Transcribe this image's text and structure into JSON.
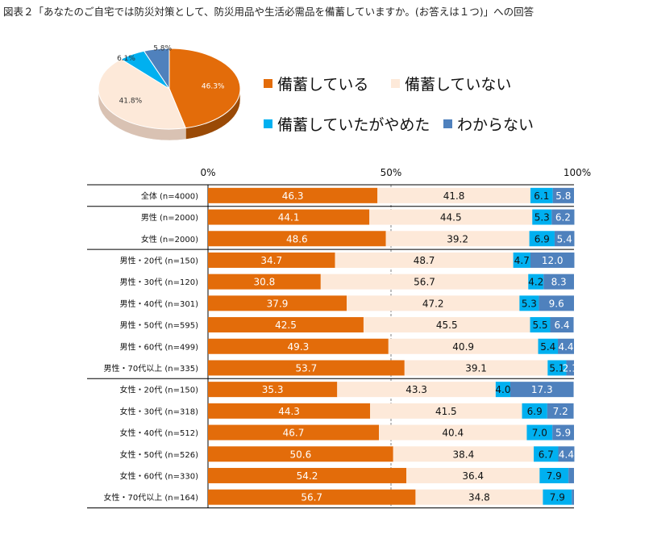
{
  "title": "図表２「あなたのご自宅では防災対策として、防災用品や生活必需品を備蓄していますか。(お答えは１つ)」への回答",
  "colors": {
    "stockpiling": "#E36C0A",
    "not_stockpiling": "#FDE9D9",
    "stopped": "#00B0F0",
    "unknown": "#4F81BD"
  },
  "legend": [
    "備蓄している",
    "備蓄していない",
    "備蓄していたがやめた",
    "わからない"
  ],
  "chart_data": [
    {
      "type": "pie",
      "title": "",
      "labels": [
        "備蓄している",
        "備蓄していない",
        "備蓄していたがやめた",
        "わからない"
      ],
      "values": [
        46.3,
        41.8,
        6.1,
        5.8
      ],
      "value_labels": [
        "46.3%",
        "41.8%",
        "6.1%",
        "5.8%"
      ]
    },
    {
      "type": "bar",
      "orientation": "horizontal",
      "stacked": true,
      "xlim": [
        0,
        100
      ],
      "ticks": [
        "0%",
        "50%",
        "100%"
      ],
      "categories": [
        "全体 (n=4000)",
        "男性 (n=2000)",
        "女性 (n=2000)",
        "男性・20代 (n=150)",
        "男性・30代 (n=120)",
        "男性・40代 (n=301)",
        "男性・50代 (n=595)",
        "男性・60代 (n=499)",
        "男性・70代以上 (n=335)",
        "女性・20代 (n=150)",
        "女性・30代 (n=318)",
        "女性・40代 (n=512)",
        "女性・50代 (n=526)",
        "女性・60代 (n=330)",
        "女性・70代以上 (n=164)"
      ],
      "series": [
        {
          "name": "備蓄している",
          "values": [
            46.3,
            44.1,
            48.6,
            34.7,
            30.8,
            37.9,
            42.5,
            49.3,
            53.7,
            35.3,
            44.3,
            46.7,
            50.6,
            54.2,
            56.7
          ]
        },
        {
          "name": "備蓄していない",
          "values": [
            41.8,
            44.5,
            39.2,
            48.7,
            56.7,
            47.2,
            45.5,
            40.9,
            39.1,
            43.3,
            41.5,
            40.4,
            38.4,
            36.4,
            34.8
          ]
        },
        {
          "name": "備蓄していたがやめた",
          "values": [
            6.1,
            5.3,
            6.9,
            4.7,
            4.2,
            5.3,
            5.5,
            5.4,
            5.1,
            4.0,
            6.9,
            7.0,
            6.7,
            7.9,
            7.9
          ]
        },
        {
          "name": "わからない",
          "values": [
            5.8,
            6.2,
            5.4,
            12.0,
            8.3,
            9.6,
            6.4,
            4.4,
            2.1,
            17.3,
            7.2,
            5.9,
            4.4,
            1.5,
            0.6
          ]
        }
      ],
      "data_labels": [
        [
          "46.3",
          "41.8",
          "6.1",
          "5.8"
        ],
        [
          "44.1",
          "44.5",
          "5.3",
          "6.2"
        ],
        [
          "48.6",
          "39.2",
          "6.9",
          "5.4"
        ],
        [
          "34.7",
          "48.7",
          "4.7",
          "12.0"
        ],
        [
          "30.8",
          "56.7",
          "4.2",
          "8.3"
        ],
        [
          "37.9",
          "47.2",
          "5.3",
          "9.6"
        ],
        [
          "42.5",
          "45.5",
          "5.5",
          "6.4"
        ],
        [
          "49.3",
          "40.9",
          "5.4",
          "4.4"
        ],
        [
          "53.7",
          "39.1",
          "5.1",
          "2.1"
        ],
        [
          "35.3",
          "43.3",
          "4.0",
          "17.3"
        ],
        [
          "44.3",
          "41.5",
          "6.9",
          "7.2"
        ],
        [
          "46.7",
          "40.4",
          "7.0",
          "5.9"
        ],
        [
          "50.6",
          "38.4",
          "6.7",
          "4.4"
        ],
        [
          "54.2",
          "36.4",
          "7.9",
          ""
        ],
        [
          "56.7",
          "34.8",
          "7.9",
          ""
        ]
      ]
    }
  ]
}
